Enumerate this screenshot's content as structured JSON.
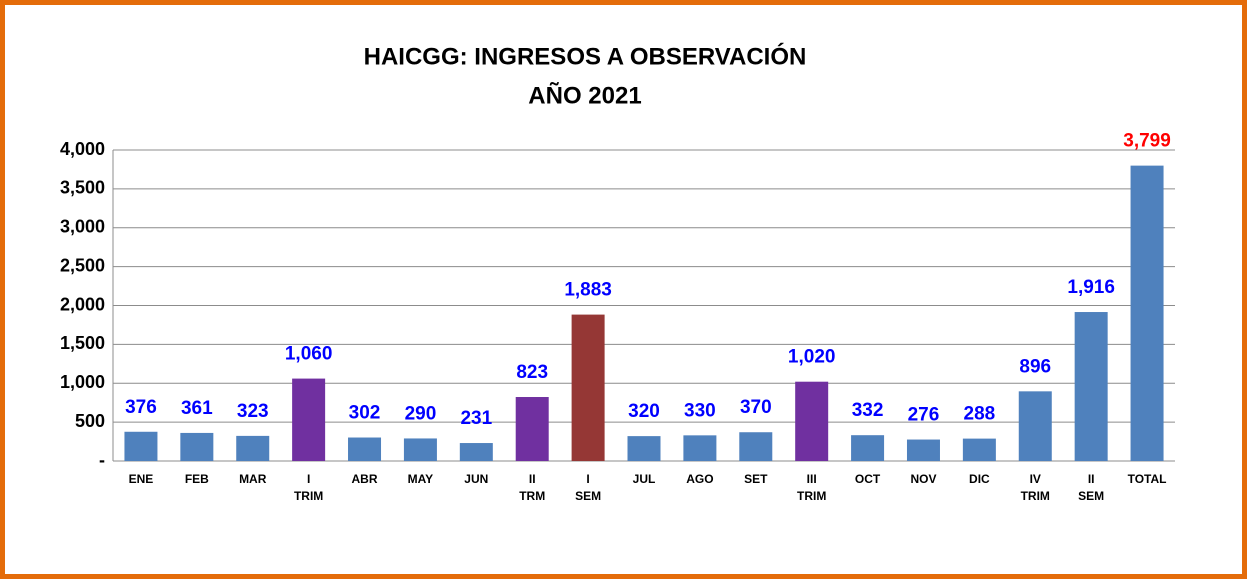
{
  "chart_data": {
    "type": "bar",
    "title": "HAICGG: INGRESOS A OBSERVACIÓN",
    "subtitle": "AÑO 2021",
    "categories": [
      "ENE",
      "FEB",
      "MAR",
      "I\nTRIM",
      "ABR",
      "MAY",
      "JUN",
      "II\nTRM",
      "I\nSEM",
      "JUL",
      "AGO",
      "SET",
      "III\nTRIM",
      "OCT",
      "NOV",
      "DIC",
      "IV\nTRIM",
      "II\nSEM",
      "TOTAL"
    ],
    "values": [
      376,
      361,
      323,
      1060,
      302,
      290,
      231,
      823,
      1883,
      320,
      330,
      370,
      1020,
      332,
      276,
      288,
      896,
      1916,
      3799
    ],
    "value_labels": [
      "376",
      "361",
      "323",
      "1,060",
      "302",
      "290",
      "231",
      "823",
      "1,883",
      "320",
      "330",
      "370",
      "1,020",
      "332",
      "276",
      "288",
      "896",
      "1,916",
      "3,799"
    ],
    "colors": [
      "#4f81bd",
      "#4f81bd",
      "#4f81bd",
      "#7030a0",
      "#4f81bd",
      "#4f81bd",
      "#4f81bd",
      "#7030a0",
      "#953735",
      "#4f81bd",
      "#4f81bd",
      "#4f81bd",
      "#7030a0",
      "#4f81bd",
      "#4f81bd",
      "#4f81bd",
      "#4f81bd",
      "#4f81bd",
      "#4f81bd"
    ],
    "label_colors": [
      "#0000ff",
      "#0000ff",
      "#0000ff",
      "#0000ff",
      "#0000ff",
      "#0000ff",
      "#0000ff",
      "#0000ff",
      "#0000ff",
      "#0000ff",
      "#0000ff",
      "#0000ff",
      "#0000ff",
      "#0000ff",
      "#0000ff",
      "#0000ff",
      "#0000ff",
      "#0000ff",
      "#ff0000"
    ],
    "ylim": [
      0,
      4000
    ],
    "yticks": [
      {
        "value": 0,
        "label": "-"
      },
      500,
      {
        "value": 1000,
        "label": "1,000"
      },
      {
        "value": 1500,
        "label": "1,500"
      },
      {
        "value": 2000,
        "label": "2,000"
      },
      {
        "value": 2500,
        "label": "2,500"
      },
      {
        "value": 3000,
        "label": "3,000"
      },
      {
        "value": 3500,
        "label": "3,500"
      },
      {
        "value": 4000,
        "label": "4,000"
      }
    ],
    "grid": true
  }
}
